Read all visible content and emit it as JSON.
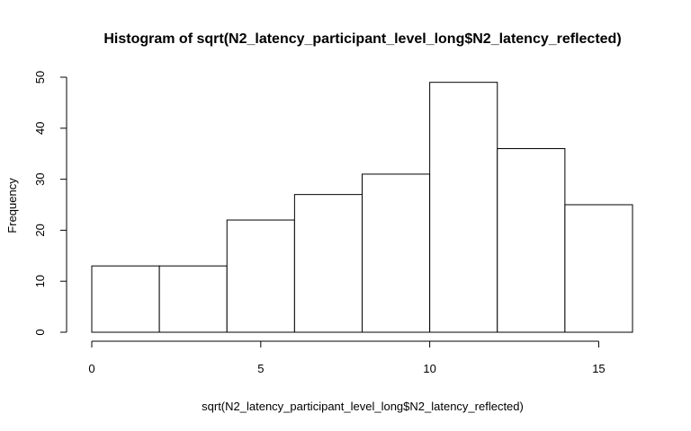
{
  "chart_data": {
    "type": "bar",
    "title": "Histogram of sqrt(N2_latency_participant_level_long$N2_latency_reflected)",
    "xlabel": "sqrt(N2_latency_participant_level_long$N2_latency_reflected)",
    "ylabel": "Frequency",
    "bins": [
      {
        "start": 0,
        "end": 2,
        "count": 13
      },
      {
        "start": 2,
        "end": 4,
        "count": 13
      },
      {
        "start": 4,
        "end": 6,
        "count": 22
      },
      {
        "start": 6,
        "end": 8,
        "count": 27
      },
      {
        "start": 8,
        "end": 10,
        "count": 31
      },
      {
        "start": 10,
        "end": 12,
        "count": 49
      },
      {
        "start": 12,
        "end": 14,
        "count": 36
      },
      {
        "start": 14,
        "end": 16,
        "count": 25
      }
    ],
    "xlim": [
      0,
      16
    ],
    "ylim": [
      0,
      50
    ],
    "x_ticks": [
      0,
      5,
      10,
      15
    ],
    "x_tick_labels": [
      "0",
      "5",
      "10",
      "15"
    ],
    "y_ticks": [
      0,
      10,
      20,
      30,
      40,
      50
    ],
    "y_tick_labels": [
      "0",
      "10",
      "20",
      "30",
      "40",
      "50"
    ],
    "grid": false,
    "bar_fill": "#ffffff",
    "bar_stroke": "#000000"
  }
}
